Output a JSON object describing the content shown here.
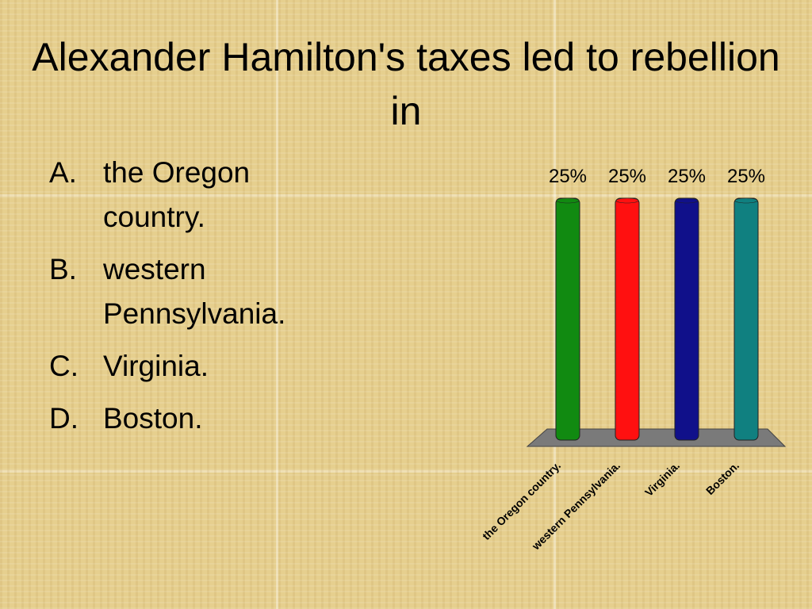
{
  "title": "Alexander Hamilton's taxes led to rebellion in",
  "choices": [
    {
      "marker": "A.",
      "text": "the Oregon country."
    },
    {
      "marker": "B.",
      "text": "western Pennsylvania."
    },
    {
      "marker": "C.",
      "text": "Virginia."
    },
    {
      "marker": "D.",
      "text": "Boston."
    }
  ],
  "chart_data": {
    "type": "bar",
    "categories": [
      "the Oregon country.",
      "western Pennsylvania.",
      "Virginia.",
      "Boston."
    ],
    "values": [
      25,
      25,
      25,
      25
    ],
    "value_labels": [
      "25%",
      "25%",
      "25%",
      "25%"
    ],
    "colors": [
      "#118a11",
      "#ff1010",
      "#10108a",
      "#108080"
    ]
  }
}
